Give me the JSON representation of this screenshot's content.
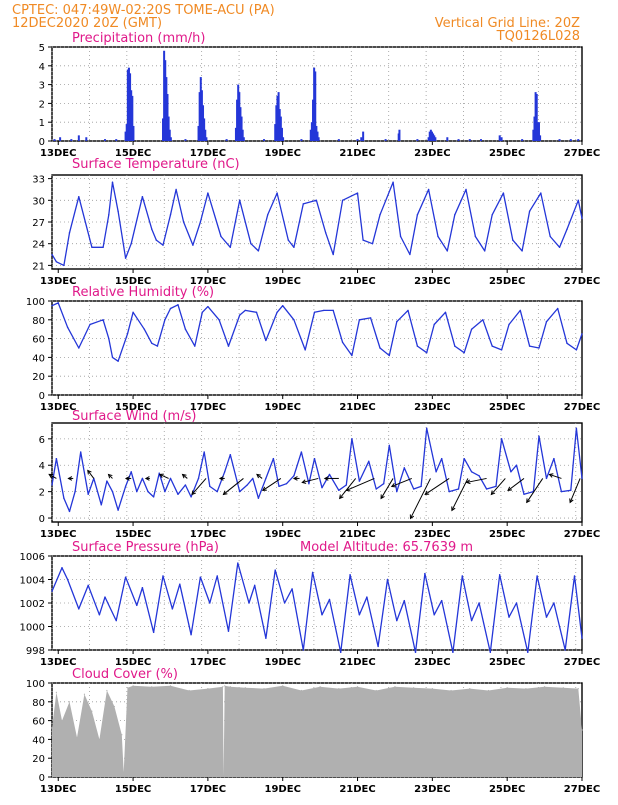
{
  "header": {
    "line1": "CPTEC:   047:49W-02:20S   TOME-ACU (PA)",
    "line2": "12DEC2020 20Z (GMT)",
    "grid_note": "Vertical Grid Line: 20Z",
    "code": "TQ0126L028"
  },
  "colors": {
    "header": "#f08a24",
    "title": "#e0198a",
    "series": "#2436d8",
    "cloud": "#b0b0b0",
    "grid": "#9a9a9a"
  },
  "x_axis": {
    "start_day": 12.833,
    "end_day": 27.0,
    "ticks": [
      13,
      15,
      17,
      19,
      21,
      23,
      25,
      27
    ],
    "tick_labels": [
      "13DEC",
      "15DEC",
      "17DEC",
      "19DEC",
      "21DEC",
      "23DEC",
      "25DEC",
      "27DEC"
    ]
  },
  "chart_data": [
    {
      "type": "bar",
      "title": "Precipitation (mm/h)",
      "ylim": [
        0,
        5
      ],
      "yticks": [
        0,
        1,
        2,
        3,
        4,
        5
      ],
      "x": [
        12.9,
        13.05,
        13.35,
        13.55,
        13.75,
        14.25,
        14.55,
        14.8,
        14.83,
        14.86,
        14.89,
        14.92,
        14.95,
        14.98,
        15.01,
        15.8,
        15.83,
        15.86,
        15.89,
        15.92,
        15.95,
        15.98,
        16.01,
        16.4,
        16.75,
        16.78,
        16.81,
        16.84,
        16.87,
        16.9,
        16.93,
        16.96,
        17.5,
        17.75,
        17.78,
        17.81,
        17.84,
        17.87,
        17.9,
        17.93,
        17.96,
        18.5,
        18.8,
        18.83,
        18.86,
        18.89,
        18.92,
        18.95,
        18.98,
        19.01,
        19.5,
        19.75,
        19.78,
        19.81,
        19.84,
        19.87,
        19.9,
        19.93,
        19.96,
        20.5,
        21.0,
        21.1,
        21.15,
        21.75,
        22.1,
        22.12,
        22.6,
        22.9,
        22.93,
        22.96,
        22.99,
        23.02,
        23.05,
        23.08,
        23.4,
        23.7,
        24.0,
        24.3,
        24.8,
        24.85,
        25.4,
        25.7,
        25.73,
        25.76,
        25.79,
        25.82,
        25.85,
        25.88,
        26.4,
        26.7,
        26.9
      ],
      "values": [
        0.1,
        0.2,
        0.1,
        0.3,
        0.2,
        0.1,
        0.1,
        0.5,
        0.9,
        3.8,
        3.9,
        3.6,
        2.7,
        2.4,
        0.8,
        1.2,
        4.8,
        4.3,
        3.4,
        2.5,
        1.3,
        0.6,
        0.2,
        0.1,
        0.8,
        2.6,
        3.4,
        2.7,
        1.9,
        1.2,
        0.6,
        0.2,
        0.1,
        0.7,
        2.2,
        3.0,
        2.6,
        1.8,
        1.3,
        0.6,
        0.2,
        0.1,
        0.9,
        1.9,
        2.4,
        2.6,
        1.7,
        1.3,
        0.7,
        0.2,
        0.1,
        0.6,
        1.0,
        2.2,
        3.9,
        3.7,
        0.8,
        0.5,
        0.2,
        0.1,
        0.1,
        0.2,
        0.5,
        0.1,
        0.4,
        0.6,
        0.1,
        0.2,
        0.5,
        0.6,
        0.5,
        0.4,
        0.3,
        0.2,
        0.2,
        0.1,
        0.1,
        0.1,
        0.3,
        0.2,
        0.1,
        0.6,
        1.3,
        2.6,
        2.5,
        1.0,
        1.0,
        0.3,
        0.1,
        0.1,
        0.1
      ]
    },
    {
      "type": "line",
      "title": "Surface Temperature (nC)",
      "ylim": [
        20.5,
        33.5
      ],
      "yticks": [
        21,
        24,
        27,
        30,
        33
      ],
      "x": [
        12.833,
        12.95,
        13.15,
        13.3,
        13.55,
        13.9,
        14.2,
        14.35,
        14.45,
        14.6,
        14.8,
        14.95,
        15.25,
        15.5,
        15.62,
        15.8,
        16.0,
        16.15,
        16.35,
        16.6,
        16.8,
        17.0,
        17.35,
        17.6,
        17.85,
        18.15,
        18.35,
        18.6,
        18.85,
        19.15,
        19.3,
        19.55,
        19.9,
        20.15,
        20.35,
        20.6,
        21.0,
        21.15,
        21.4,
        21.6,
        21.95,
        22.15,
        22.4,
        22.6,
        22.9,
        23.15,
        23.4,
        23.6,
        23.9,
        24.15,
        24.4,
        24.6,
        24.9,
        25.15,
        25.4,
        25.6,
        25.9,
        26.15,
        26.4,
        26.6,
        26.9,
        27.0
      ],
      "values": [
        22.5,
        21.5,
        21.0,
        25.5,
        30.5,
        23.5,
        23.5,
        28.0,
        32.5,
        28.5,
        22.0,
        24.0,
        30.5,
        26.0,
        24.5,
        23.8,
        28.0,
        31.5,
        27.0,
        23.8,
        27.0,
        31.0,
        25.0,
        23.5,
        30.0,
        24.0,
        23.0,
        28.0,
        31.0,
        24.5,
        23.5,
        29.5,
        30.0,
        25.5,
        22.5,
        30.0,
        31.0,
        24.5,
        24.0,
        28.0,
        32.5,
        25.0,
        22.5,
        28.0,
        31.5,
        25.0,
        23.0,
        28.0,
        31.5,
        25.0,
        23.0,
        28.0,
        31.0,
        24.5,
        23.0,
        28.5,
        31.0,
        25.0,
        23.5,
        26.0,
        30.0,
        27.5
      ]
    },
    {
      "type": "line",
      "title": "Relative Humidity (%)",
      "ylim": [
        0,
        100
      ],
      "yticks": [
        0,
        20,
        40,
        60,
        80,
        100
      ],
      "x": [
        12.833,
        13.0,
        13.25,
        13.55,
        13.85,
        14.2,
        14.35,
        14.45,
        14.6,
        14.85,
        15.0,
        15.3,
        15.5,
        15.65,
        15.85,
        16.0,
        16.2,
        16.4,
        16.65,
        16.85,
        17.0,
        17.3,
        17.55,
        17.85,
        18.0,
        18.3,
        18.55,
        18.85,
        19.0,
        19.3,
        19.6,
        19.85,
        20.1,
        20.35,
        20.6,
        20.85,
        21.05,
        21.35,
        21.6,
        21.85,
        22.05,
        22.35,
        22.6,
        22.85,
        23.05,
        23.35,
        23.6,
        23.85,
        24.05,
        24.35,
        24.6,
        24.85,
        25.05,
        25.35,
        25.6,
        25.85,
        26.05,
        26.35,
        26.6,
        26.85,
        27.0
      ],
      "values": [
        95.0,
        98.0,
        72.0,
        50.0,
        75.0,
        80.0,
        60.0,
        40.0,
        36.0,
        65.0,
        88.0,
        70.0,
        55.0,
        52.0,
        80.0,
        92.0,
        96.0,
        70.0,
        52.0,
        88.0,
        94.0,
        80.0,
        52.0,
        85.0,
        90.0,
        88.0,
        58.0,
        88.0,
        95.0,
        80.0,
        48.0,
        88.0,
        90.0,
        90.0,
        56.0,
        42.0,
        80.0,
        82.0,
        50.0,
        42.0,
        78.0,
        90.0,
        52.0,
        45.0,
        75.0,
        88.0,
        52.0,
        45.0,
        70.0,
        80.0,
        52.0,
        48.0,
        75.0,
        90.0,
        52.0,
        50.0,
        78.0,
        92.0,
        55.0,
        48.0,
        65.0
      ]
    },
    {
      "type": "line",
      "title": "Surface Wind (m/s)",
      "ylim": [
        -0.3,
        7.2
      ],
      "yticks": [
        0,
        2,
        4,
        6
      ],
      "x": [
        12.833,
        12.95,
        13.15,
        13.3,
        13.45,
        13.6,
        13.8,
        13.95,
        14.15,
        14.3,
        14.45,
        14.6,
        14.8,
        14.95,
        15.1,
        15.25,
        15.4,
        15.55,
        15.7,
        15.85,
        16.0,
        16.2,
        16.4,
        16.55,
        16.75,
        16.9,
        17.05,
        17.25,
        17.45,
        17.6,
        17.85,
        18.05,
        18.2,
        18.35,
        18.55,
        18.75,
        18.9,
        19.1,
        19.3,
        19.5,
        19.7,
        19.85,
        20.05,
        20.25,
        20.5,
        20.7,
        20.85,
        21.05,
        21.3,
        21.5,
        21.7,
        21.85,
        22.05,
        22.25,
        22.5,
        22.7,
        22.85,
        23.1,
        23.25,
        23.45,
        23.7,
        23.85,
        24.05,
        24.25,
        24.45,
        24.7,
        24.85,
        25.1,
        25.25,
        25.45,
        25.7,
        25.85,
        26.05,
        26.25,
        26.45,
        26.7,
        26.85,
        27.0
      ],
      "values": [
        2.5,
        4.5,
        1.5,
        0.5,
        2.0,
        5.0,
        1.8,
        3.0,
        1.0,
        2.8,
        2.0,
        0.6,
        2.4,
        3.5,
        2.0,
        3.0,
        2.0,
        1.6,
        3.4,
        2.0,
        3.0,
        1.8,
        2.5,
        1.6,
        3.0,
        5.0,
        2.4,
        2.0,
        3.5,
        4.8,
        2.0,
        2.5,
        3.0,
        1.5,
        3.0,
        4.5,
        2.4,
        2.6,
        3.2,
        5.0,
        2.6,
        4.5,
        2.3,
        3.3,
        2.1,
        2.5,
        6.0,
        2.8,
        4.3,
        2.2,
        2.6,
        5.5,
        2.0,
        3.8,
        2.2,
        2.4,
        6.8,
        3.5,
        4.5,
        2.0,
        2.2,
        4.5,
        3.5,
        3.2,
        2.2,
        2.4,
        6.0,
        3.5,
        4.0,
        1.8,
        2.0,
        6.2,
        3.0,
        4.5,
        2.0,
        2.1,
        6.8,
        3.0
      ],
      "arrow_x": [
        12.95,
        13.4,
        13.95,
        14.45,
        14.95,
        15.45,
        15.95,
        16.45,
        16.95,
        17.45,
        17.95,
        18.45,
        18.95,
        19.45,
        19.95,
        20.5,
        20.95,
        21.45,
        21.95,
        22.45,
        22.95,
        23.45,
        23.95,
        24.45,
        24.95,
        25.45,
        25.95,
        26.45,
        26.95
      ],
      "arrow_dx": [
        -0.18,
        -0.12,
        -0.15,
        -0.1,
        -0.13,
        -0.1,
        -0.22,
        -0.12,
        -0.35,
        -0.12,
        -0.5,
        -0.13,
        -0.45,
        -0.14,
        -0.4,
        -0.35,
        -0.4,
        -0.7,
        -0.3,
        -0.5,
        -0.5,
        -0.6,
        -0.4,
        -0.5,
        -0.35,
        -0.4,
        -0.4,
        -0.3,
        -0.25
      ],
      "arrow_dy": [
        0.1,
        0.0,
        0.2,
        0.1,
        0.0,
        0.0,
        0.1,
        0.1,
        -0.4,
        0.0,
        -0.4,
        0.1,
        -0.3,
        0.0,
        -0.1,
        0.0,
        -0.5,
        -0.3,
        -0.5,
        -0.2,
        -1.0,
        -0.4,
        -0.8,
        -0.1,
        -0.4,
        -0.3,
        -0.6,
        0.1,
        -0.6
      ]
    },
    {
      "type": "line",
      "title": "Surface Pressure (hPa)",
      "subtitle": "Model Altitude: 65.7639  m",
      "ylim": [
        998,
        1006
      ],
      "yticks": [
        998,
        1000,
        1002,
        1004,
        1006
      ],
      "x": [
        12.833,
        13.1,
        13.25,
        13.55,
        13.8,
        14.1,
        14.25,
        14.55,
        14.8,
        15.1,
        15.25,
        15.55,
        15.8,
        16.05,
        16.25,
        16.55,
        16.8,
        17.05,
        17.25,
        17.55,
        17.8,
        18.1,
        18.25,
        18.55,
        18.8,
        19.05,
        19.25,
        19.55,
        19.8,
        20.05,
        20.25,
        20.55,
        20.8,
        21.05,
        21.25,
        21.55,
        21.8,
        22.05,
        22.25,
        22.55,
        22.8,
        23.05,
        23.25,
        23.55,
        23.8,
        24.05,
        24.25,
        24.55,
        24.8,
        25.05,
        25.25,
        25.55,
        25.8,
        26.05,
        26.25,
        26.55,
        26.8,
        27.0
      ],
      "values": [
        1003.0,
        1005.0,
        1004.0,
        1001.5,
        1003.5,
        1001.0,
        1002.5,
        1000.5,
        1004.2,
        1001.8,
        1003.3,
        999.5,
        1004.3,
        1001.5,
        1003.6,
        999.3,
        1004.2,
        1002.0,
        1004.3,
        999.6,
        1005.4,
        1002.0,
        1003.5,
        999.0,
        1004.8,
        1002.0,
        1003.2,
        998.0,
        1004.6,
        1001.0,
        1002.3,
        997.8,
        1004.4,
        1001.0,
        1002.5,
        998.3,
        1004.0,
        1000.5,
        1002.2,
        997.8,
        1004.5,
        1001.0,
        1002.2,
        997.8,
        1004.3,
        1000.5,
        1002.0,
        997.8,
        1004.4,
        1000.8,
        1002.0,
        997.8,
        1004.3,
        1000.8,
        1002.0,
        998.0,
        1004.3,
        999.0
      ]
    },
    {
      "type": "area",
      "title": "Cloud Cover (%)",
      "ylim": [
        0,
        100
      ],
      "yticks": [
        0,
        20,
        40,
        60,
        80,
        100
      ],
      "x": [
        12.833,
        12.95,
        13.1,
        13.3,
        13.5,
        13.7,
        13.9,
        14.1,
        14.3,
        14.5,
        14.7,
        14.75,
        14.85,
        15.0,
        15.5,
        16.0,
        16.5,
        17.0,
        17.4,
        17.42,
        17.45,
        17.6,
        18.0,
        18.5,
        19.0,
        19.5,
        20.0,
        20.5,
        21.0,
        21.5,
        22.0,
        22.5,
        23.0,
        23.5,
        24.0,
        24.5,
        25.0,
        25.5,
        26.0,
        26.5,
        26.9,
        27.0
      ],
      "values": [
        52.0,
        90.0,
        60.0,
        80.0,
        42.0,
        88.0,
        70.0,
        40.0,
        92.0,
        75.0,
        45.0,
        5.0,
        95.0,
        97.0,
        96.0,
        97.0,
        92.0,
        94.0,
        96.0,
        1.0,
        97.0,
        96.0,
        95.0,
        94.0,
        97.0,
        92.0,
        96.0,
        94.0,
        96.0,
        92.0,
        96.0,
        95.0,
        94.0,
        92.0,
        94.0,
        92.0,
        95.0,
        94.0,
        96.0,
        95.0,
        94.0,
        50.0
      ]
    }
  ]
}
